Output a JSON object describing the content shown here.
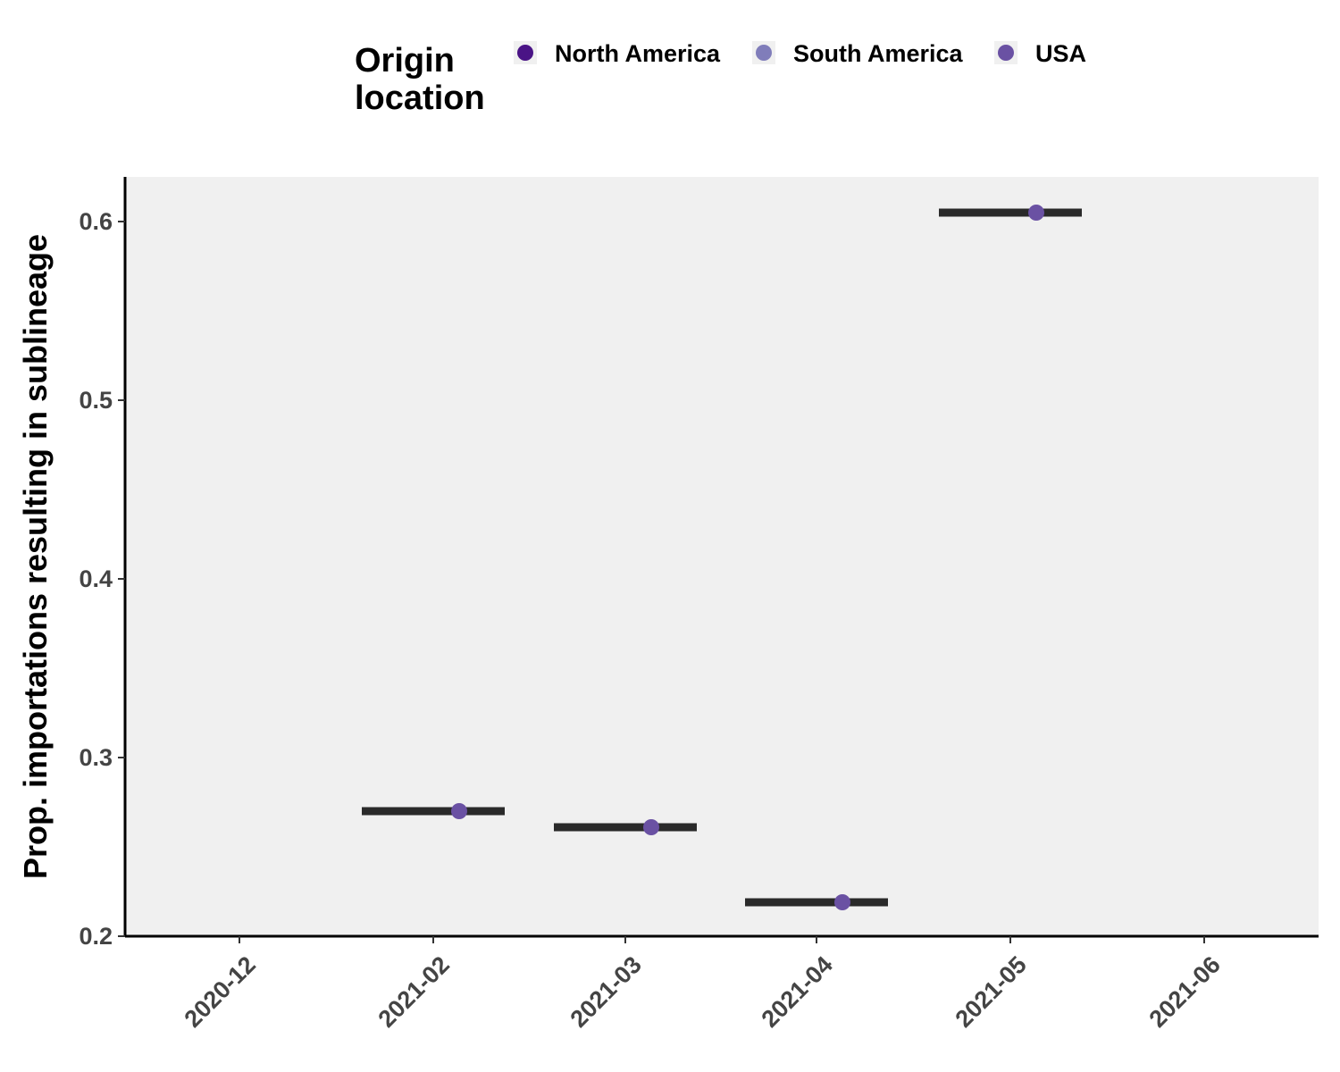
{
  "chart_data": {
    "type": "scatter",
    "title": "",
    "xlabel": "",
    "ylabel": "Prop. importations resulting in sublineage",
    "ylim": [
      0.2,
      0.625
    ],
    "y_ticks": [
      "0.2",
      "0.3",
      "0.4",
      "0.5",
      "0.6"
    ],
    "x_ticks": [
      "2020-12",
      "2021-02",
      "2021-03",
      "2021-04",
      "2021-05",
      "2021-06"
    ],
    "grid": false,
    "legend": {
      "title_lines": [
        "Origin",
        "location"
      ],
      "placement": "top",
      "entries": [
        {
          "label": "North America",
          "color": "#4a1486"
        },
        {
          "label": "South America",
          "color": "#807dba"
        },
        {
          "label": "USA",
          "color": "#6a51a3"
        }
      ]
    },
    "series": [
      {
        "name": "USA",
        "color": "#6a51a3",
        "points": [
          {
            "month": "2021-02",
            "y": 0.27
          },
          {
            "month": "2021-03",
            "y": 0.261
          },
          {
            "month": "2021-04",
            "y": 0.219
          },
          {
            "month": "2021-05",
            "y": 0.605
          }
        ]
      }
    ],
    "medians": [
      {
        "month": "2021-02",
        "y": 0.27
      },
      {
        "month": "2021-03",
        "y": 0.261
      },
      {
        "month": "2021-04",
        "y": 0.219
      },
      {
        "month": "2021-05",
        "y": 0.605
      }
    ],
    "colors": {
      "panel_background": "#f0f0f0",
      "median_bar": "#2a2a2a",
      "axis_line": "#000000"
    }
  }
}
